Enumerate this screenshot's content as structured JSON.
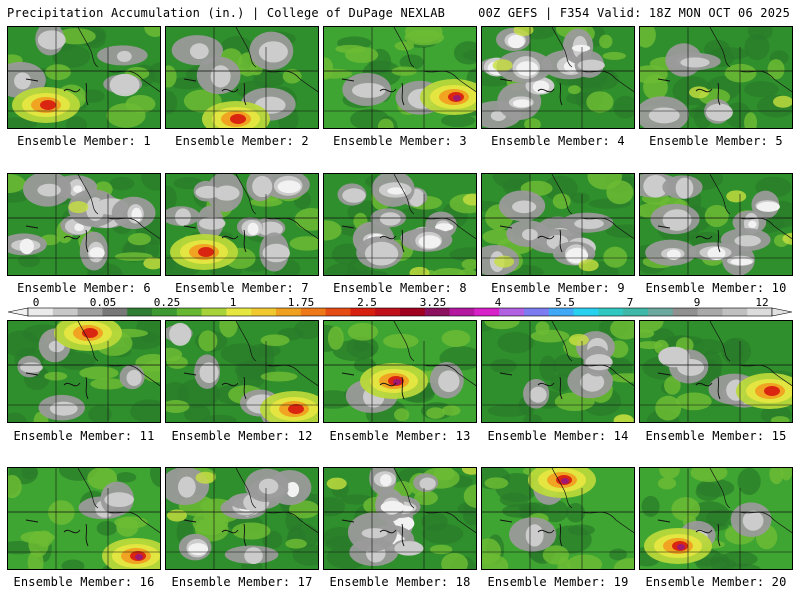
{
  "header": {
    "left": "Precipitation Accumulation (in.) | College of DuPage NEXLAB",
    "right": "00Z GEFS | F354 Valid: 18Z MON OCT 06 2025"
  },
  "colorbar": {
    "labels": [
      "0",
      "0.05",
      "0.25",
      "1",
      "1.75",
      "2.5",
      "3.25",
      "4",
      "5.5",
      "7",
      "9",
      "12"
    ],
    "colors": [
      "#ebebeb",
      "#c8c8c8",
      "#a0a0a0",
      "#787878",
      "#2e7d32",
      "#3c9a30",
      "#66b832",
      "#a8d23a",
      "#e6e640",
      "#f0c830",
      "#f0a020",
      "#ec7818",
      "#e44c14",
      "#d82010",
      "#c0101a",
      "#a00020",
      "#8c1060",
      "#b418a0",
      "#d820c8",
      "#b060e0",
      "#7c7cf0",
      "#40a8f4",
      "#28d0f0",
      "#30c8c0",
      "#40b8a8",
      "#6aa8a0",
      "#909090",
      "#a8a8a8",
      "#c0c0c0",
      "#dcdcdc"
    ]
  },
  "panels": [
    {
      "label": "Ensemble Member: 1",
      "precip": "moderate",
      "hot": "southwest"
    },
    {
      "label": "Ensemble Member: 2",
      "precip": "moderate",
      "hot": "south"
    },
    {
      "label": "Ensemble Member: 3",
      "precip": "wet",
      "hot": "east"
    },
    {
      "label": "Ensemble Member: 4",
      "precip": "dry",
      "hot": "none"
    },
    {
      "label": "Ensemble Member: 5",
      "precip": "moderate",
      "hot": "none"
    },
    {
      "label": "Ensemble Member: 6",
      "precip": "dry",
      "hot": "none"
    },
    {
      "label": "Ensemble Member: 7",
      "precip": "dry",
      "hot": "southwest"
    },
    {
      "label": "Ensemble Member: 8",
      "precip": "dry",
      "hot": "none"
    },
    {
      "label": "Ensemble Member: 9",
      "precip": "dry",
      "hot": "none"
    },
    {
      "label": "Ensemble Member: 10",
      "precip": "dry",
      "hot": "none"
    },
    {
      "label": "Ensemble Member: 11",
      "precip": "moderate",
      "hot": "north"
    },
    {
      "label": "Ensemble Member: 12",
      "precip": "moderate",
      "hot": "southeast"
    },
    {
      "label": "Ensemble Member: 13",
      "precip": "wet",
      "hot": "center"
    },
    {
      "label": "Ensemble Member: 14",
      "precip": "moderate",
      "hot": "none"
    },
    {
      "label": "Ensemble Member: 15",
      "precip": "moderate",
      "hot": "east"
    },
    {
      "label": "Ensemble Member: 16",
      "precip": "wet",
      "hot": "southeast"
    },
    {
      "label": "Ensemble Member: 17",
      "precip": "dry",
      "hot": "none"
    },
    {
      "label": "Ensemble Member: 18",
      "precip": "dry",
      "hot": "none"
    },
    {
      "label": "Ensemble Member: 19",
      "precip": "wet",
      "hot": "north"
    },
    {
      "label": "Ensemble Member: 20",
      "precip": "wet",
      "hot": "southwest"
    }
  ]
}
